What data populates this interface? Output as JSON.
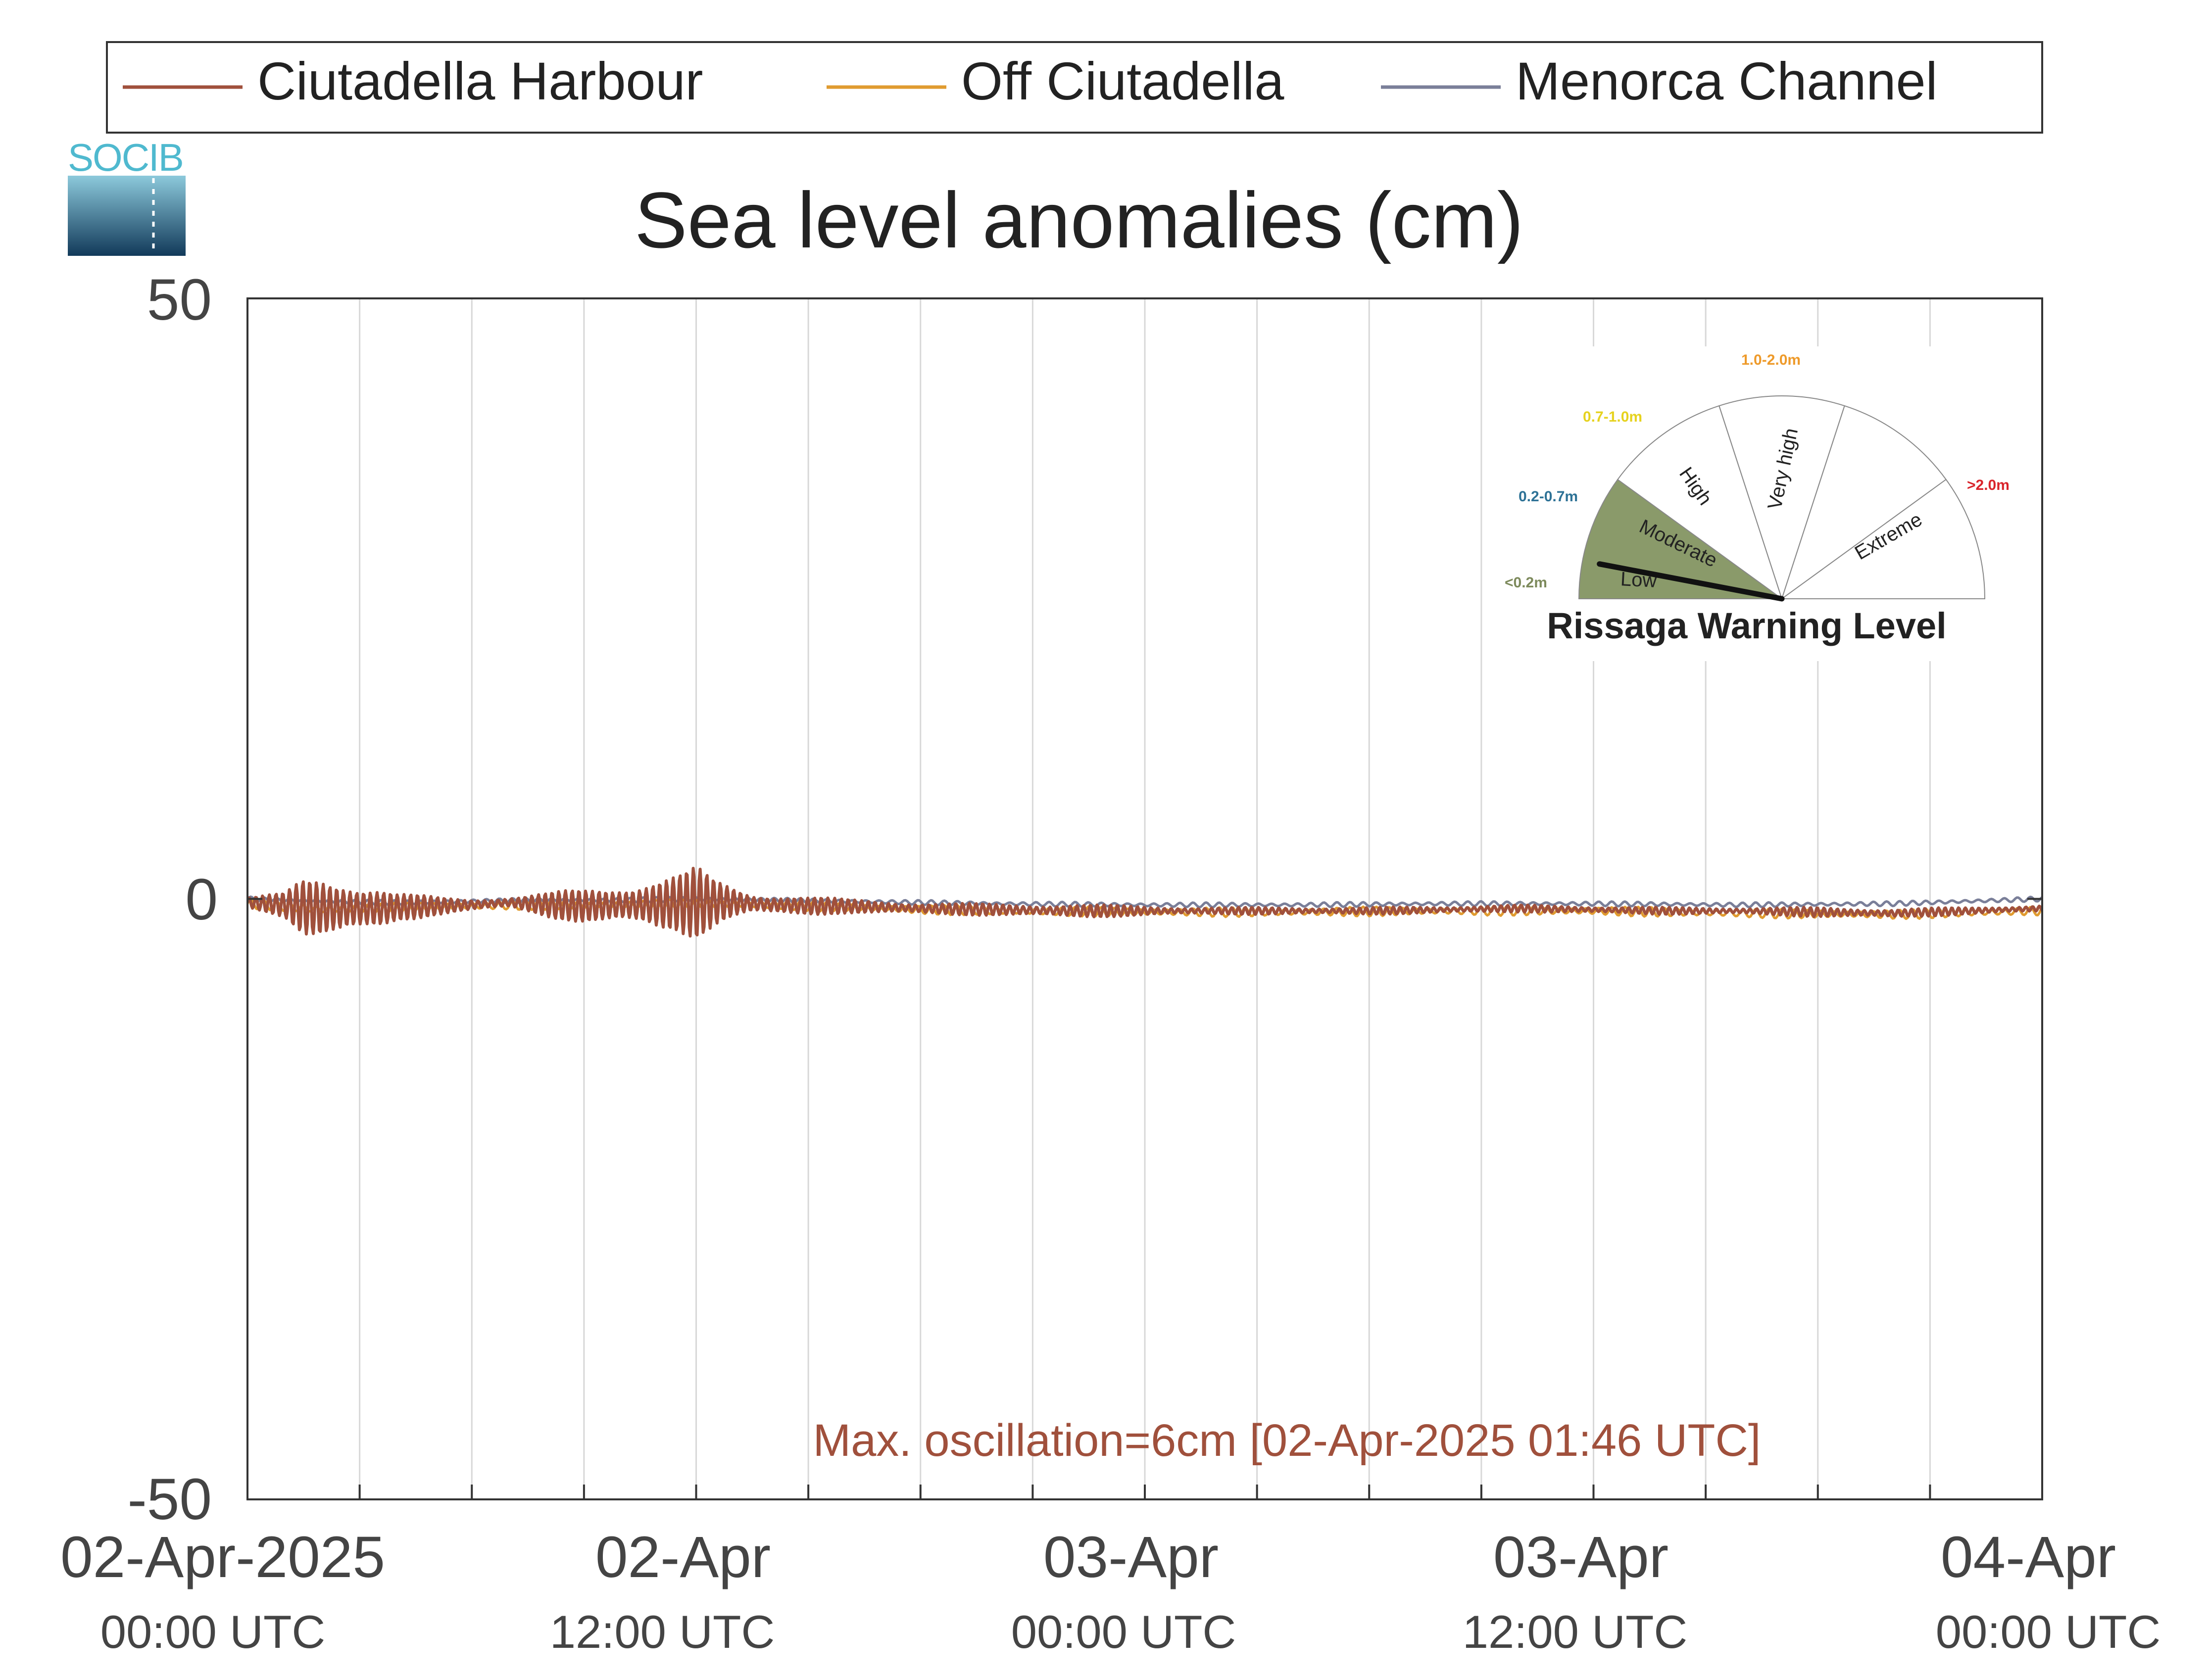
{
  "logo": {
    "text": "SOCIB"
  },
  "legend": {
    "placement": "top",
    "entries": [
      {
        "label": "Ciutadella Harbour",
        "color": "#a0503c"
      },
      {
        "label": "Off Ciutadella",
        "color": "#e09b30"
      },
      {
        "label": "Menorca Channel",
        "color": "#7a7f99"
      }
    ]
  },
  "chart_data": {
    "type": "line",
    "title": "Sea level anomalies (cm)",
    "xlabel": "",
    "ylabel": "",
    "grid": "vertical",
    "ylim": [
      -50,
      50
    ],
    "yticks": [
      "50",
      "0",
      "-50"
    ],
    "xlim": [
      "2025-04-02 00:00",
      "2025-04-04 00:00"
    ],
    "xticks": [
      {
        "date": "02-Apr-2025",
        "time": "00:00 UTC"
      },
      {
        "date": "02-Apr",
        "time": "12:00 UTC"
      },
      {
        "date": "03-Apr",
        "time": "00:00 UTC"
      },
      {
        "date": "03-Apr",
        "time": "12:00 UTC"
      },
      {
        "date": "04-Apr",
        "time": "00:00 UTC"
      }
    ],
    "series": [
      {
        "name": "Ciutadella Harbour",
        "color": "#a0503c",
        "x_hours": [
          0,
          1,
          1.5,
          2,
          2.5,
          3,
          3.5,
          4,
          5,
          6,
          7,
          8,
          9,
          10,
          11,
          11.5,
          12,
          12.5,
          13,
          13.5,
          14,
          15,
          16,
          17,
          18,
          20,
          22,
          24,
          26,
          28,
          30,
          32,
          34,
          36,
          38,
          40,
          42,
          44,
          46,
          48
        ],
        "amplitude_cm": [
          0.5,
          1.0,
          2.5,
          3.0,
          3.0,
          2.5,
          2.0,
          1.2,
          0.8,
          0.6,
          0.5,
          1.0,
          1.5,
          2.0,
          2.5,
          2.5,
          3.0,
          2.0,
          1.5,
          1.0,
          1.0,
          0.8,
          0.6,
          0.6,
          0.5,
          0.5,
          0.6,
          0.4,
          0.3,
          0.3,
          0.3,
          0.3,
          0.3,
          0.3,
          0.3,
          0.3,
          0.4,
          0.4,
          0.3,
          0.3
        ],
        "mean_cm": [
          -0.3,
          -0.5,
          -0.7,
          -0.8,
          -0.8,
          -0.8,
          -0.8,
          -0.7,
          -0.6,
          -0.5,
          -0.3,
          -0.5,
          -0.6,
          -0.5,
          -0.5,
          -0.4,
          -0.3,
          -0.3,
          -0.3,
          -0.4,
          -0.5,
          -0.6,
          -0.6,
          -0.7,
          -0.8,
          -0.9,
          -1.0,
          -1.0,
          -1.0,
          -1.0,
          -1.0,
          -0.9,
          -0.8,
          -0.9,
          -1.0,
          -1.0,
          -1.1,
          -1.2,
          -1.0,
          -0.8
        ]
      },
      {
        "name": "Off Ciutadella",
        "color": "#e09b30",
        "x_hours": [
          0,
          2,
          4,
          6,
          8,
          10,
          12,
          14,
          16,
          18,
          20,
          24,
          28,
          32,
          36,
          40,
          44,
          48
        ],
        "mean_cm": [
          -0.4,
          -0.9,
          -0.7,
          -0.6,
          -0.5,
          -0.5,
          -0.4,
          -0.5,
          -0.7,
          -0.9,
          -1.0,
          -1.1,
          -1.1,
          -1.0,
          -1.0,
          -1.2,
          -1.3,
          -1.0
        ],
        "amplitude_cm": 0.4
      },
      {
        "name": "Menorca Channel",
        "color": "#7a7f99",
        "x_hours": [
          0,
          2,
          4,
          6,
          8,
          10,
          12,
          14,
          16,
          18,
          20,
          24,
          28,
          32,
          36,
          40,
          44,
          48
        ],
        "mean_cm": [
          0.0,
          -0.2,
          -0.3,
          -0.2,
          -0.1,
          -0.1,
          0.0,
          -0.1,
          -0.2,
          -0.3,
          -0.4,
          -0.5,
          -0.5,
          -0.4,
          -0.4,
          -0.5,
          -0.4,
          0.0
        ],
        "amplitude_cm": 0.2
      }
    ],
    "annotation": "Max. oscillation=6cm [02-Apr-2025 01:46 UTC]",
    "annotation_color": "#a0503c",
    "max_oscillation_cm": 6
  },
  "gauge": {
    "title": "Rissaga Warning Level",
    "value_m": 0.06,
    "sectors": [
      {
        "name": "Low",
        "range": "<0.2m",
        "range_color": "#7d8a5c",
        "fill": "#8a9a6a"
      },
      {
        "name": "Moderate",
        "range": "0.2-0.7m",
        "range_color": "#2e7296",
        "fill": "#ffffff"
      },
      {
        "name": "High",
        "range": "0.7-1.0m",
        "range_color": "#e6d21e",
        "fill": "#ffffff"
      },
      {
        "name": "Very high",
        "range": "1.0-2.0m",
        "range_color": "#ee9a2a",
        "fill": "#ffffff"
      },
      {
        "name": "Extreme",
        "range": ">2.0m",
        "range_color": "#d9242b",
        "fill": "#ffffff"
      }
    ]
  }
}
